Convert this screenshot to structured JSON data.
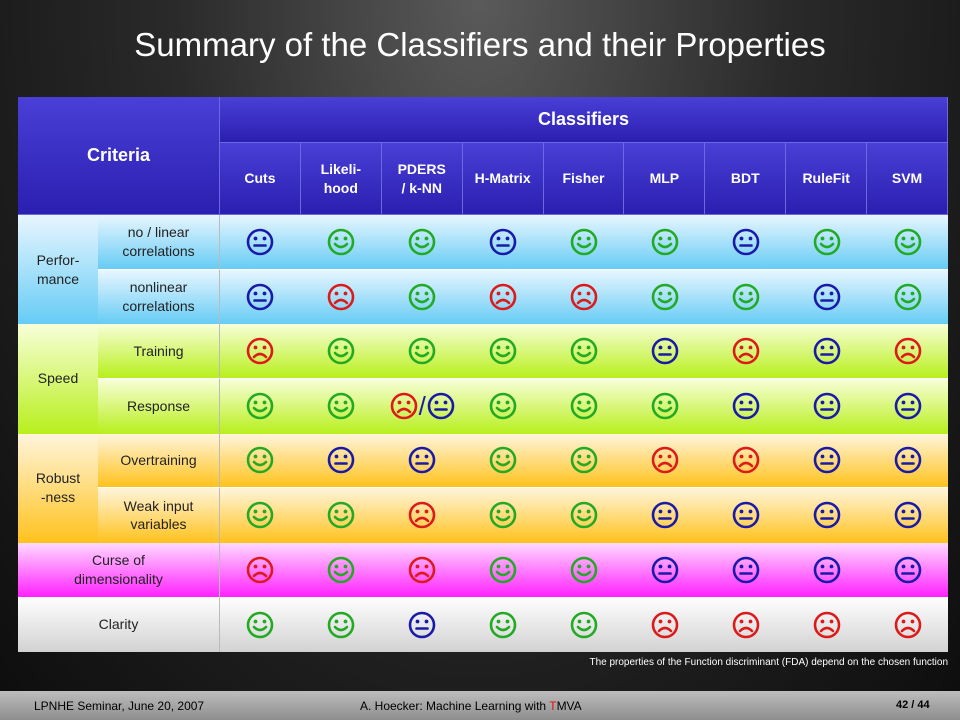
{
  "title": "Summary of the Classifiers and their Properties",
  "table": {
    "criteria_header": "Criteria",
    "classifiers_header": "Classifiers",
    "classifiers": [
      "Cuts",
      "Likeli-\nhood",
      "PDERS\n/ k-NN",
      "H-Matrix",
      "Fisher",
      "MLP",
      "BDT",
      "RuleFit",
      "SVM"
    ],
    "groups": [
      {
        "label": "Perfor-\nmance",
        "class": "perf",
        "rows": [
          {
            "label": "no / linear\ncorrelations",
            "ratings": [
              "neutral",
              "happy",
              "happy",
              "neutral",
              "happy",
              "happy",
              "neutral",
              "happy",
              "happy"
            ]
          },
          {
            "label": "nonlinear\ncorrelations",
            "ratings": [
              "neutral",
              "sad",
              "happy",
              "sad",
              "sad",
              "happy",
              "happy",
              "neutral",
              "happy"
            ]
          }
        ]
      },
      {
        "label": "Speed",
        "class": "speed",
        "rows": [
          {
            "label": "Training",
            "ratings": [
              "sad",
              "happy",
              "happy",
              "happy",
              "happy",
              "neutral",
              "sad",
              "neutral",
              "sad"
            ]
          },
          {
            "label": "Response",
            "ratings": [
              "happy",
              "happy",
              "sad/neutral",
              "happy",
              "happy",
              "happy",
              "neutral",
              "neutral",
              "neutral"
            ]
          }
        ]
      },
      {
        "label": "Robust\n-ness",
        "class": "rob",
        "rows": [
          {
            "label": "Overtraining",
            "ratings": [
              "happy",
              "neutral",
              "neutral",
              "happy",
              "happy",
              "sad",
              "sad",
              "neutral",
              "neutral"
            ]
          },
          {
            "label": "Weak input\nvariables",
            "ratings": [
              "happy",
              "happy",
              "sad",
              "happy",
              "happy",
              "neutral",
              "neutral",
              "neutral",
              "neutral"
            ]
          }
        ]
      },
      {
        "label": "Curse of\ndimensionality",
        "class": "curse",
        "span": true,
        "rows": [
          {
            "label": "",
            "ratings": [
              "sad",
              "happy",
              "sad",
              "happy",
              "happy",
              "neutral",
              "neutral",
              "neutral",
              "neutral"
            ]
          }
        ]
      },
      {
        "label": "Clarity",
        "class": "clar",
        "span": true,
        "rows": [
          {
            "label": "",
            "ratings": [
              "happy",
              "happy",
              "neutral",
              "happy",
              "happy",
              "sad",
              "sad",
              "sad",
              "sad"
            ]
          }
        ]
      }
    ]
  },
  "footnote": "The properties of the Function discriminant (FDA) depend on the chosen function",
  "footer": {
    "left": "LPNHE Seminar, June 20, 2007",
    "center_prefix": "A. Hoecker: Machine Learning with ",
    "center_t": "T",
    "center_suffix": "MVA",
    "page": "42 / 44"
  },
  "colors": {
    "happy": "#22aa22",
    "neutral": "#1a1aaa",
    "sad": "#dd1a1a"
  },
  "icons": {
    "happy": "smiley-happy-icon",
    "neutral": "smiley-neutral-icon",
    "sad": "smiley-sad-icon"
  }
}
